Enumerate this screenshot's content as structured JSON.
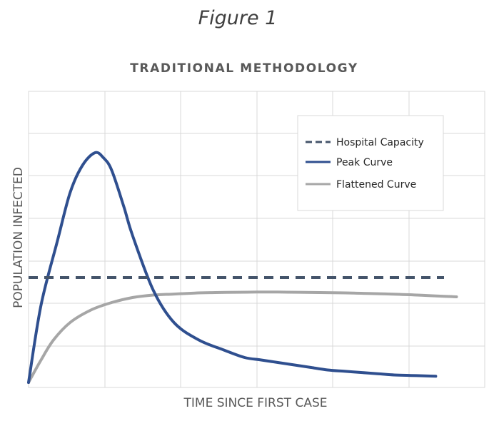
{
  "figure_caption": "Figure 1",
  "chart_data": {
    "type": "line",
    "title": "TRADITIONAL METHODOLOGY",
    "xlabel": "TIME SINCE FIRST CASE",
    "ylabel": "POPULATION INFECTED",
    "x_tick_labels": false,
    "y_tick_labels": false,
    "grid": true,
    "legend_placement": "top-right",
    "xlim": [
      0,
      100
    ],
    "ylim": [
      0,
      100
    ],
    "series": [
      {
        "name": "Hospital Capacity",
        "style": "dashed",
        "color": "#44546a",
        "x": [
          0,
          100
        ],
        "y": [
          42,
          42
        ]
      },
      {
        "name": "Peak Curve",
        "style": "solid",
        "color": "#2f4f8f",
        "x": [
          0,
          3,
          7,
          10,
          13,
          16,
          18,
          20,
          23,
          25,
          30,
          35,
          41,
          47,
          52,
          56,
          60,
          64,
          68,
          72,
          76,
          80,
          84,
          88,
          92,
          96,
          98
        ],
        "y": [
          0,
          31,
          57,
          76,
          87,
          92,
          90,
          85,
          70,
          59,
          37,
          24,
          17,
          13,
          10,
          9,
          8,
          7,
          6,
          5,
          4.5,
          4,
          3.5,
          3,
          2.8,
          2.6,
          2.5
        ]
      },
      {
        "name": "Flattened Curve",
        "style": "solid",
        "color": "#a6a6a6",
        "x": [
          0,
          3,
          6,
          10,
          15,
          20,
          25,
          30,
          35,
          40,
          45,
          50,
          55,
          60,
          65,
          70,
          75,
          80,
          85,
          90,
          95,
          100,
          103
        ],
        "y": [
          0,
          9,
          17,
          24,
          29,
          32,
          34,
          35,
          35.4,
          35.8,
          36,
          36.1,
          36.2,
          36.2,
          36.1,
          36,
          35.9,
          35.7,
          35.5,
          35.2,
          34.9,
          34.5,
          34.3
        ]
      }
    ]
  }
}
